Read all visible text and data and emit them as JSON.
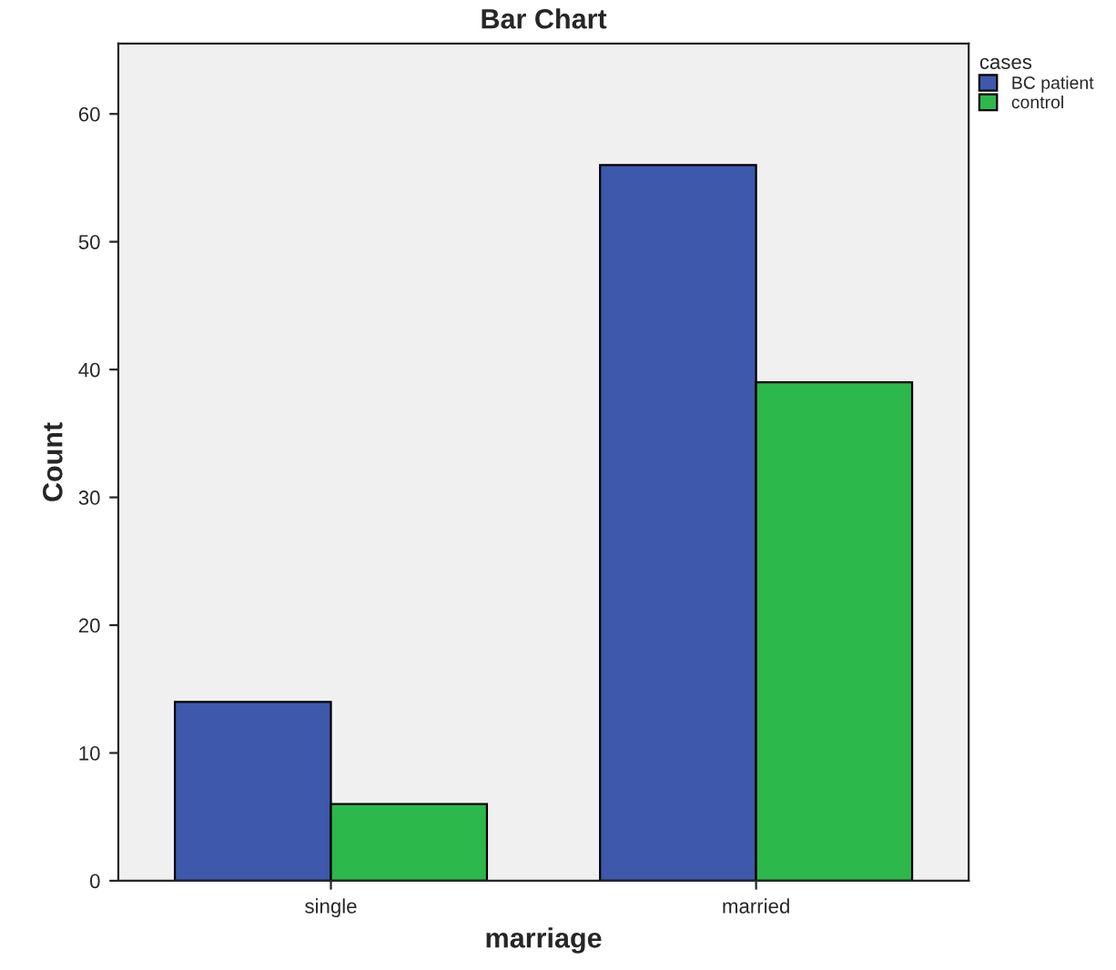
{
  "chart_data": {
    "type": "bar",
    "title": "Bar Chart",
    "xlabel": "marriage",
    "ylabel": "Count",
    "legend_title": "cases",
    "categories": [
      "single",
      "married"
    ],
    "series": [
      {
        "name": "BC patient",
        "color": "#3e58ac",
        "values": [
          14,
          56
        ]
      },
      {
        "name": "control",
        "color": "#2db84b",
        "values": [
          6,
          39
        ]
      }
    ],
    "ylim": [
      0,
      65.5
    ],
    "yticks": [
      0,
      10,
      20,
      30,
      40,
      50,
      60
    ],
    "grid": false,
    "legend": "top right"
  }
}
